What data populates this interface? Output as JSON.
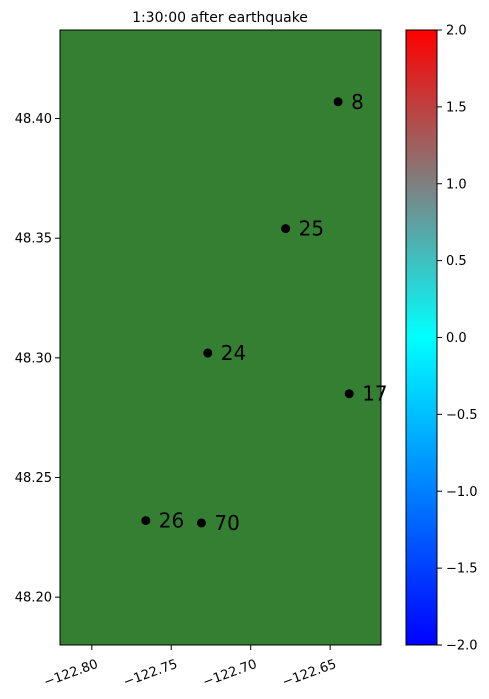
{
  "chart_data": [
    {
      "type": "scatter",
      "title": "1:30:00 after earthquake",
      "xlabel": "",
      "ylabel": "",
      "xlim": [
        -122.82,
        -122.618
      ],
      "ylim": [
        48.18,
        48.437
      ],
      "x_ticks": [
        -122.8,
        -122.75,
        -122.7,
        -122.65
      ],
      "x_tick_labels": [
        "−122.80",
        "−122.75",
        "−122.70",
        "−122.65"
      ],
      "y_ticks": [
        48.2,
        48.25,
        48.3,
        48.35,
        48.4
      ],
      "y_tick_labels": [
        "48.20",
        "48.25",
        "48.30",
        "48.35",
        "48.40"
      ],
      "grid": false,
      "background_color": "#357f33",
      "marker_color": "#000000",
      "points": [
        {
          "label": "8",
          "x": -122.645,
          "y": 48.407
        },
        {
          "label": "25",
          "x": -122.678,
          "y": 48.354
        },
        {
          "label": "24",
          "x": -122.727,
          "y": 48.302
        },
        {
          "label": "17",
          "x": -122.638,
          "y": 48.285
        },
        {
          "label": "26",
          "x": -122.766,
          "y": 48.232
        },
        {
          "label": "70",
          "x": -122.731,
          "y": 48.231
        }
      ]
    },
    {
      "type": "colorbar",
      "range": [
        -2.0,
        2.0
      ],
      "ticks": [
        -2.0,
        -1.5,
        -1.0,
        -0.5,
        0.0,
        0.5,
        1.0,
        1.5,
        2.0
      ],
      "tick_labels": [
        "−2.0",
        "−1.5",
        "−1.0",
        "−0.5",
        "0.0",
        "0.5",
        "1.0",
        "1.5",
        "2.0"
      ],
      "colors": [
        "#0000ff",
        "#00ffff",
        "#ff0000"
      ]
    }
  ]
}
